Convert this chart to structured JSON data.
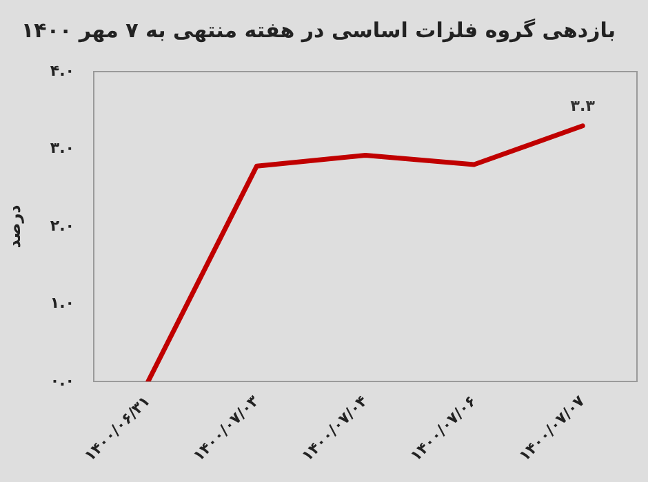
{
  "chart_data": {
    "type": "line",
    "title": "بازدهی گروه فلزات اساسی در هفته منتهی به ۷ مهر ۱۴۰۰",
    "ylabel": "درصد",
    "categories": [
      "۱۴۰۰/۰۶/۳۱",
      "۱۴۰۰/۰۷/۰۳",
      "۱۴۰۰/۰۷/۰۴",
      "۱۴۰۰/۰۷/۰۶",
      "۱۴۰۰/۰۷/۰۷"
    ],
    "series": [
      {
        "color": "#c00000",
        "values": [
          0,
          2.78,
          2.92,
          2.8,
          3.3
        ],
        "value_labels": [
          null,
          null,
          null,
          null,
          "۳.۳"
        ]
      }
    ],
    "ylim": [
      0,
      4
    ],
    "yticks": [
      {
        "value": 0,
        "label": "۰.۰"
      },
      {
        "value": 1,
        "label": "۱.۰"
      },
      {
        "value": 2,
        "label": "۲.۰"
      },
      {
        "value": 3,
        "label": "۳.۰"
      },
      {
        "value": 4,
        "label": "۴.۰"
      }
    ],
    "grid": false,
    "legend": false,
    "marker": "none",
    "line_style": "solid"
  }
}
